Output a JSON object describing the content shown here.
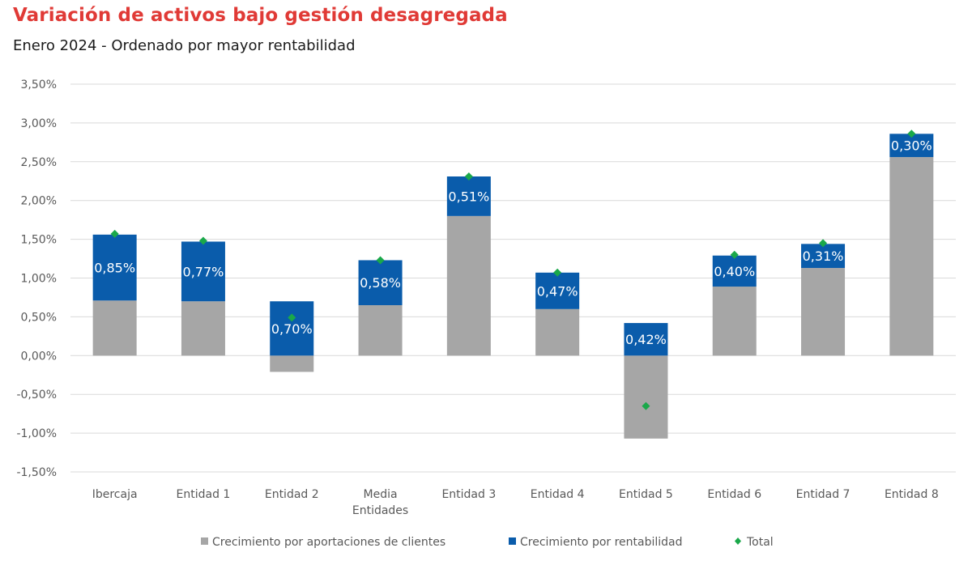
{
  "title": "Variación de activos bajo gestión desagregada",
  "subtitle": "Enero 2024 - Ordenado por mayor rentabilidad",
  "colors": {
    "title": "#e03a36",
    "aportaciones": "#a6a6a6",
    "rentabilidad": "#0a5cab",
    "total": "#1aa84a",
    "grid": "#d9d9d9",
    "text": "#595959"
  },
  "chart_data": {
    "type": "bar",
    "stacked": true,
    "categories": [
      "Ibercaja",
      "Entidad 1",
      "Entidad 2",
      "Media Entidades",
      "Entidad 3",
      "Entidad 4",
      "Entidad 5",
      "Entidad 6",
      "Entidad 7",
      "Entidad 8"
    ],
    "category_lines": [
      [
        "Ibercaja"
      ],
      [
        "Entidad 1"
      ],
      [
        "Entidad 2"
      ],
      [
        "Media",
        "Entidades"
      ],
      [
        "Entidad 3"
      ],
      [
        "Entidad 4"
      ],
      [
        "Entidad 5"
      ],
      [
        "Entidad 6"
      ],
      [
        "Entidad 7"
      ],
      [
        "Entidad 8"
      ]
    ],
    "series": [
      {
        "name": "Crecimiento por aportaciones de clientes",
        "values": [
          0.71,
          0.7,
          -0.21,
          0.65,
          1.8,
          0.6,
          -1.07,
          0.89,
          1.13,
          2.56
        ]
      },
      {
        "name": "Crecimiento por rentabilidad",
        "values": [
          0.85,
          0.77,
          0.7,
          0.58,
          0.51,
          0.47,
          0.42,
          0.4,
          0.31,
          0.3
        ]
      },
      {
        "name": "Total",
        "values": [
          1.57,
          1.48,
          0.49,
          1.23,
          2.31,
          1.07,
          -0.65,
          1.3,
          1.45,
          2.86
        ]
      }
    ],
    "data_labels": [
      "0,85%",
      "0,77%",
      "0,70%",
      "0,58%",
      "0,51%",
      "0,47%",
      "0,42%",
      "0,40%",
      "0,31%",
      "0,30%"
    ],
    "y_ticks": [
      "3,50%",
      "3,00%",
      "2,50%",
      "2,00%",
      "1,50%",
      "1,00%",
      "0,50%",
      "0,00%",
      "-0,50%",
      "-1,00%",
      "-1,50%"
    ],
    "ylim": [
      -1.5,
      3.5
    ],
    "grid": true,
    "legend": "bottom",
    "xlabel": "",
    "ylabel": ""
  }
}
